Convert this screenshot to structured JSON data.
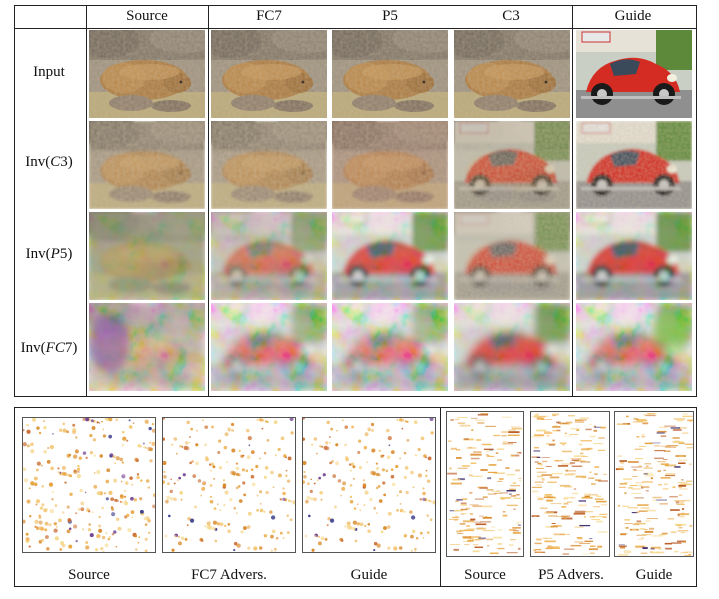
{
  "figure": {
    "top_table": {
      "column_headers": [
        "Source",
        "FC7",
        "P5",
        "C3",
        "Guide"
      ],
      "row_labels": [
        {
          "text": "Input",
          "italic": ""
        },
        {
          "text": "Inv(",
          "italic": "C",
          "suffix": "3)"
        },
        {
          "text": "Inv(",
          "italic": "P",
          "suffix": "5)"
        },
        {
          "text": "Inv(",
          "italic": "FC",
          "suffix": "7)"
        }
      ],
      "image_descriptions": {
        "source": "hyena lying on rocks",
        "guide": "red car"
      }
    },
    "bottom_panels": {
      "left_group": {
        "captions": [
          "Source",
          "FC7 Advers.",
          "Guide"
        ]
      },
      "right_group": {
        "captions": [
          "Source",
          "P5 Advers.",
          "Guide"
        ]
      }
    },
    "colors": {
      "rule": "#222222",
      "hyena": "#a9773d",
      "rock": "#8a7a66",
      "grass": "#b8a878",
      "car_red": "#d42c22",
      "foliage": "#5d8a3a",
      "dot_orange": "#e5a33c",
      "dot_purple": "#6b3a8c"
    }
  }
}
